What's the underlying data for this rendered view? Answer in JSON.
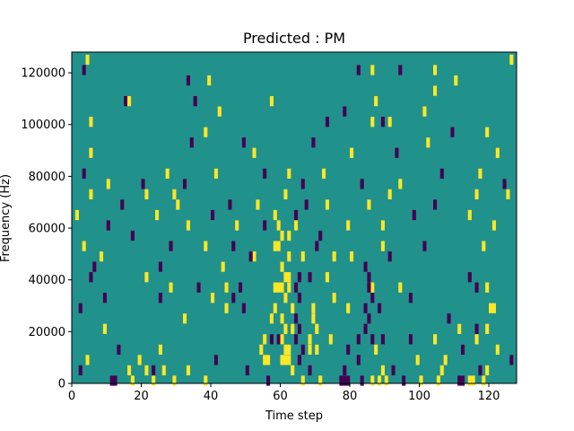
{
  "chart_data": {
    "type": "heatmap",
    "title": "Predicted : PM",
    "xlabel": "Time step",
    "ylabel": "Frequency (Hz)",
    "xlim": [
      0,
      128
    ],
    "ylim": [
      0,
      128000
    ],
    "xticks": [
      0,
      20,
      40,
      60,
      80,
      100,
      120
    ],
    "yticks": [
      0,
      20000,
      40000,
      60000,
      80000,
      100000,
      120000
    ],
    "ytick_labels": [
      "0",
      "20000",
      "40000",
      "60000",
      "80000",
      "100000",
      "120000"
    ],
    "grid": false,
    "legend": "none",
    "colormap": {
      "low": "#440154",
      "mid": "#21918c",
      "high": "#fde725"
    },
    "background_value": 0,
    "cells": [
      {
        "x": 4,
        "y": 126000,
        "v": 1
      },
      {
        "x": 126,
        "y": 126000,
        "v": 1
      },
      {
        "x": 3,
        "y": 122000,
        "v": -1
      },
      {
        "x": 33,
        "y": 118000,
        "v": -1
      },
      {
        "x": 39,
        "y": 118000,
        "v": 1
      },
      {
        "x": 82,
        "y": 122000,
        "v": -1
      },
      {
        "x": 86,
        "y": 122000,
        "v": 1
      },
      {
        "x": 94,
        "y": 122000,
        "v": -1
      },
      {
        "x": 104,
        "y": 122000,
        "v": 1
      },
      {
        "x": 110,
        "y": 118000,
        "v": 1
      },
      {
        "x": 15,
        "y": 110000,
        "v": -1
      },
      {
        "x": 16,
        "y": 110000,
        "v": 1
      },
      {
        "x": 35,
        "y": 110000,
        "v": -1
      },
      {
        "x": 42,
        "y": 106000,
        "v": 1
      },
      {
        "x": 57,
        "y": 110000,
        "v": 1
      },
      {
        "x": 5,
        "y": 102000,
        "v": 1
      },
      {
        "x": 73,
        "y": 102000,
        "v": -1
      },
      {
        "x": 87,
        "y": 110000,
        "v": 1
      },
      {
        "x": 78,
        "y": 106000,
        "v": -1
      },
      {
        "x": 101,
        "y": 106000,
        "v": 1
      },
      {
        "x": 104,
        "y": 114000,
        "v": 1
      },
      {
        "x": 86,
        "y": 102000,
        "v": 1
      },
      {
        "x": 89,
        "y": 102000,
        "v": -1
      },
      {
        "x": 91,
        "y": 102000,
        "v": 1
      },
      {
        "x": 109,
        "y": 98000,
        "v": -1
      },
      {
        "x": 119,
        "y": 98000,
        "v": 1
      },
      {
        "x": 5,
        "y": 90000,
        "v": 1
      },
      {
        "x": 34,
        "y": 94000,
        "v": -1
      },
      {
        "x": 38,
        "y": 98000,
        "v": 1
      },
      {
        "x": 49,
        "y": 94000,
        "v": -1
      },
      {
        "x": 52,
        "y": 90000,
        "v": 1
      },
      {
        "x": 69,
        "y": 94000,
        "v": -1
      },
      {
        "x": 80,
        "y": 90000,
        "v": 1
      },
      {
        "x": 93,
        "y": 90000,
        "v": -1
      },
      {
        "x": 102,
        "y": 94000,
        "v": 1
      },
      {
        "x": 122,
        "y": 90000,
        "v": 1
      },
      {
        "x": 3,
        "y": 82000,
        "v": -1
      },
      {
        "x": 10,
        "y": 78000,
        "v": 1
      },
      {
        "x": 20,
        "y": 78000,
        "v": -1
      },
      {
        "x": 27,
        "y": 82000,
        "v": 1
      },
      {
        "x": 32,
        "y": 78000,
        "v": -1
      },
      {
        "x": 41,
        "y": 82000,
        "v": 1
      },
      {
        "x": 55,
        "y": 82000,
        "v": -1
      },
      {
        "x": 62,
        "y": 82000,
        "v": 1
      },
      {
        "x": 66,
        "y": 78000,
        "v": -1
      },
      {
        "x": 72,
        "y": 82000,
        "v": 1
      },
      {
        "x": 83,
        "y": 78000,
        "v": -1
      },
      {
        "x": 94,
        "y": 78000,
        "v": 1
      },
      {
        "x": 106,
        "y": 82000,
        "v": -1
      },
      {
        "x": 117,
        "y": 82000,
        "v": 1
      },
      {
        "x": 124,
        "y": 78000,
        "v": -1
      },
      {
        "x": 5,
        "y": 74000,
        "v": 1
      },
      {
        "x": 14,
        "y": 70000,
        "v": -1
      },
      {
        "x": 21,
        "y": 74000,
        "v": 1
      },
      {
        "x": 29,
        "y": 74000,
        "v": 1
      },
      {
        "x": 30,
        "y": 70000,
        "v": 1
      },
      {
        "x": 45,
        "y": 70000,
        "v": -1
      },
      {
        "x": 53,
        "y": 70000,
        "v": 1
      },
      {
        "x": 61,
        "y": 74000,
        "v": 1
      },
      {
        "x": 67,
        "y": 70000,
        "v": -1
      },
      {
        "x": 73,
        "y": 70000,
        "v": 1
      },
      {
        "x": 85,
        "y": 70000,
        "v": 1
      },
      {
        "x": 91,
        "y": 74000,
        "v": 1
      },
      {
        "x": 104,
        "y": 70000,
        "v": -1
      },
      {
        "x": 116,
        "y": 74000,
        "v": 1
      },
      {
        "x": 125,
        "y": 74000,
        "v": 1
      },
      {
        "x": 1,
        "y": 66000,
        "v": 1
      },
      {
        "x": 10,
        "y": 62000,
        "v": -1
      },
      {
        "x": 24,
        "y": 66000,
        "v": 1
      },
      {
        "x": 33,
        "y": 62000,
        "v": 1
      },
      {
        "x": 40,
        "y": 66000,
        "v": -1
      },
      {
        "x": 47,
        "y": 62000,
        "v": 1
      },
      {
        "x": 55,
        "y": 62000,
        "v": -1
      },
      {
        "x": 60,
        "y": 58000,
        "v": 1
      },
      {
        "x": 64,
        "y": 62000,
        "v": 1
      },
      {
        "x": 71,
        "y": 58000,
        "v": -1
      },
      {
        "x": 79,
        "y": 62000,
        "v": 1
      },
      {
        "x": 89,
        "y": 62000,
        "v": 1
      },
      {
        "x": 98,
        "y": 66000,
        "v": -1
      },
      {
        "x": 114,
        "y": 66000,
        "v": 1
      },
      {
        "x": 121,
        "y": 62000,
        "v": 1
      },
      {
        "x": 3,
        "y": 54000,
        "v": 1
      },
      {
        "x": 17,
        "y": 58000,
        "v": -1
      },
      {
        "x": 28,
        "y": 54000,
        "v": -1
      },
      {
        "x": 38,
        "y": 54000,
        "v": 1
      },
      {
        "x": 46,
        "y": 54000,
        "v": -1
      },
      {
        "x": 52,
        "y": 50000,
        "v": 1
      },
      {
        "x": 59,
        "y": 54000,
        "v": 1
      },
      {
        "x": 70,
        "y": 54000,
        "v": -1
      },
      {
        "x": 80,
        "y": 50000,
        "v": 1
      },
      {
        "x": 89,
        "y": 54000,
        "v": 1
      },
      {
        "x": 101,
        "y": 54000,
        "v": -1
      },
      {
        "x": 118,
        "y": 54000,
        "v": 1
      },
      {
        "x": 8,
        "y": 50000,
        "v": 1
      },
      {
        "x": 6,
        "y": 46000,
        "v": -1
      },
      {
        "x": 25,
        "y": 46000,
        "v": -1
      },
      {
        "x": 43,
        "y": 46000,
        "v": 1
      },
      {
        "x": 51,
        "y": 50000,
        "v": -1
      },
      {
        "x": 66,
        "y": 50000,
        "v": 1
      },
      {
        "x": 75,
        "y": 50000,
        "v": 1
      },
      {
        "x": 91,
        "y": 50000,
        "v": -1
      },
      {
        "x": 114,
        "y": 42000,
        "v": -1
      },
      {
        "x": 5,
        "y": 42000,
        "v": -1
      },
      {
        "x": 21,
        "y": 42000,
        "v": 1
      },
      {
        "x": 28,
        "y": 38000,
        "v": 1
      },
      {
        "x": 36,
        "y": 38000,
        "v": -1
      },
      {
        "x": 44,
        "y": 38000,
        "v": 1
      },
      {
        "x": 48,
        "y": 38000,
        "v": -1
      },
      {
        "x": 68,
        "y": 42000,
        "v": -1
      },
      {
        "x": 73,
        "y": 42000,
        "v": 1
      },
      {
        "x": 86,
        "y": 38000,
        "v": 1
      },
      {
        "x": 94,
        "y": 38000,
        "v": 1
      },
      {
        "x": 116,
        "y": 38000,
        "v": -1
      },
      {
        "x": 119,
        "y": 38000,
        "v": 1
      },
      {
        "x": 9,
        "y": 34000,
        "v": -1
      },
      {
        "x": 25,
        "y": 34000,
        "v": -1
      },
      {
        "x": 40,
        "y": 34000,
        "v": 1
      },
      {
        "x": 46,
        "y": 34000,
        "v": -1
      },
      {
        "x": 75,
        "y": 34000,
        "v": 1
      },
      {
        "x": 97,
        "y": 34000,
        "v": -1
      },
      {
        "x": 120,
        "y": 30000,
        "v": 1
      },
      {
        "x": 121,
        "y": 30000,
        "v": 1
      },
      {
        "x": 2,
        "y": 30000,
        "v": -1
      },
      {
        "x": 32,
        "y": 26000,
        "v": 1
      },
      {
        "x": 44,
        "y": 30000,
        "v": 1
      },
      {
        "x": 49,
        "y": 30000,
        "v": -1
      },
      {
        "x": 79,
        "y": 30000,
        "v": 1
      },
      {
        "x": 88,
        "y": 30000,
        "v": -1
      },
      {
        "x": 108,
        "y": 26000,
        "v": -1
      },
      {
        "x": 111,
        "y": 22000,
        "v": 1
      },
      {
        "x": 116,
        "y": 22000,
        "v": -1
      },
      {
        "x": 119,
        "y": 22000,
        "v": 1
      },
      {
        "x": 9,
        "y": 22000,
        "v": 1
      },
      {
        "x": 54,
        "y": 14000,
        "v": 1
      },
      {
        "x": 55,
        "y": 18000,
        "v": 1
      },
      {
        "x": 57,
        "y": 18000,
        "v": -1
      },
      {
        "x": 59,
        "y": 18000,
        "v": -1
      },
      {
        "x": 68,
        "y": 14000,
        "v": 1
      },
      {
        "x": 74,
        "y": 18000,
        "v": 1
      },
      {
        "x": 79,
        "y": 14000,
        "v": -1
      },
      {
        "x": 82,
        "y": 18000,
        "v": -1
      },
      {
        "x": 87,
        "y": 14000,
        "v": 1
      },
      {
        "x": 89,
        "y": 18000,
        "v": -1
      },
      {
        "x": 97,
        "y": 18000,
        "v": -1
      },
      {
        "x": 104,
        "y": 18000,
        "v": 1
      },
      {
        "x": 112,
        "y": 14000,
        "v": -1
      },
      {
        "x": 116,
        "y": 18000,
        "v": 1
      },
      {
        "x": 13,
        "y": 14000,
        "v": -1
      },
      {
        "x": 25,
        "y": 14000,
        "v": 1
      },
      {
        "x": 4,
        "y": 10000,
        "v": 1
      },
      {
        "x": 19,
        "y": 10000,
        "v": 1
      },
      {
        "x": 41,
        "y": 10000,
        "v": -1
      },
      {
        "x": 82,
        "y": 10000,
        "v": -1
      },
      {
        "x": 99,
        "y": 10000,
        "v": 1
      },
      {
        "x": 107,
        "y": 10000,
        "v": 1
      },
      {
        "x": 122,
        "y": 14000,
        "v": 1
      },
      {
        "x": 126,
        "y": 10000,
        "v": -1
      },
      {
        "x": 2,
        "y": 6000,
        "v": -1
      },
      {
        "x": 16,
        "y": 6000,
        "v": 1
      },
      {
        "x": 21,
        "y": 6000,
        "v": 1
      },
      {
        "x": 23,
        "y": 6000,
        "v": -1
      },
      {
        "x": 26,
        "y": 6000,
        "v": 1
      },
      {
        "x": 33,
        "y": 6000,
        "v": 1
      },
      {
        "x": 50,
        "y": 6000,
        "v": -1
      },
      {
        "x": 68,
        "y": 6000,
        "v": -1
      },
      {
        "x": 78,
        "y": 6000,
        "v": -1
      },
      {
        "x": 89,
        "y": 6000,
        "v": 1
      },
      {
        "x": 92,
        "y": 6000,
        "v": -1
      },
      {
        "x": 106,
        "y": 6000,
        "v": 1
      },
      {
        "x": 117,
        "y": 6000,
        "v": -1
      },
      {
        "x": 119,
        "y": 6000,
        "v": 1
      },
      {
        "x": 11,
        "y": 2000,
        "v": -1
      },
      {
        "x": 12,
        "y": 2000,
        "v": -1
      },
      {
        "x": 17,
        "y": 2000,
        "v": 1
      },
      {
        "x": 23,
        "y": 2000,
        "v": 1
      },
      {
        "x": 29,
        "y": 2000,
        "v": 1
      },
      {
        "x": 38,
        "y": 2000,
        "v": 1
      },
      {
        "x": 56,
        "y": 2000,
        "v": -1
      },
      {
        "x": 66,
        "y": 2000,
        "v": 1
      },
      {
        "x": 71,
        "y": 2000,
        "v": 1
      },
      {
        "x": 77,
        "y": 2000,
        "v": -1
      },
      {
        "x": 78,
        "y": 2000,
        "v": -1
      },
      {
        "x": 79,
        "y": 2000,
        "v": -1
      },
      {
        "x": 83,
        "y": 2000,
        "v": -1
      },
      {
        "x": 86,
        "y": 2000,
        "v": 1
      },
      {
        "x": 88,
        "y": 2000,
        "v": 1
      },
      {
        "x": 90,
        "y": 2000,
        "v": 1
      },
      {
        "x": 95,
        "y": 2000,
        "v": -1
      },
      {
        "x": 100,
        "y": 2000,
        "v": 1
      },
      {
        "x": 105,
        "y": 2000,
        "v": 1
      },
      {
        "x": 111,
        "y": 2000,
        "v": -1
      },
      {
        "x": 112,
        "y": 2000,
        "v": -1
      },
      {
        "x": 114,
        "y": 2000,
        "v": 1
      },
      {
        "x": 115,
        "y": 2000,
        "v": 1
      },
      {
        "x": 118,
        "y": 2000,
        "v": 1
      },
      {
        "x": 60,
        "y": 46000,
        "v": 1
      },
      {
        "x": 61,
        "y": 42000,
        "v": 1
      },
      {
        "x": 62,
        "y": 42000,
        "v": 1
      },
      {
        "x": 60,
        "y": 38000,
        "v": 1
      },
      {
        "x": 61,
        "y": 34000,
        "v": 1
      },
      {
        "x": 62,
        "y": 38000,
        "v": 1
      },
      {
        "x": 63,
        "y": 30000,
        "v": 1
      },
      {
        "x": 60,
        "y": 26000,
        "v": 1
      },
      {
        "x": 61,
        "y": 22000,
        "v": 1
      },
      {
        "x": 63,
        "y": 22000,
        "v": 1
      },
      {
        "x": 60,
        "y": 18000,
        "v": 1
      },
      {
        "x": 61,
        "y": 14000,
        "v": 1
      },
      {
        "x": 62,
        "y": 14000,
        "v": 1
      },
      {
        "x": 60,
        "y": 10000,
        "v": 1
      },
      {
        "x": 61,
        "y": 10000,
        "v": 1
      },
      {
        "x": 62,
        "y": 10000,
        "v": 1
      },
      {
        "x": 63,
        "y": 6000,
        "v": 1
      },
      {
        "x": 58,
        "y": 38000,
        "v": 1
      },
      {
        "x": 59,
        "y": 38000,
        "v": 1
      },
      {
        "x": 58,
        "y": 30000,
        "v": 1
      },
      {
        "x": 57,
        "y": 26000,
        "v": 1
      },
      {
        "x": 56,
        "y": 10000,
        "v": 1
      },
      {
        "x": 55,
        "y": 10000,
        "v": 1
      },
      {
        "x": 64,
        "y": 38000,
        "v": -1
      },
      {
        "x": 65,
        "y": 42000,
        "v": -1
      },
      {
        "x": 65,
        "y": 34000,
        "v": -1
      },
      {
        "x": 64,
        "y": 26000,
        "v": -1
      },
      {
        "x": 65,
        "y": 22000,
        "v": -1
      },
      {
        "x": 64,
        "y": 18000,
        "v": -1
      },
      {
        "x": 66,
        "y": 14000,
        "v": -1
      },
      {
        "x": 65,
        "y": 10000,
        "v": -1
      },
      {
        "x": 69,
        "y": 30000,
        "v": 1
      },
      {
        "x": 69,
        "y": 26000,
        "v": 1
      },
      {
        "x": 70,
        "y": 22000,
        "v": 1
      },
      {
        "x": 70,
        "y": 14000,
        "v": 1
      },
      {
        "x": 68,
        "y": 18000,
        "v": 1
      },
      {
        "x": 84,
        "y": 46000,
        "v": -1
      },
      {
        "x": 85,
        "y": 42000,
        "v": -1
      },
      {
        "x": 85,
        "y": 38000,
        "v": -1
      },
      {
        "x": 86,
        "y": 34000,
        "v": -1
      },
      {
        "x": 84,
        "y": 30000,
        "v": -1
      },
      {
        "x": 85,
        "y": 26000,
        "v": -1
      },
      {
        "x": 84,
        "y": 22000,
        "v": -1
      },
      {
        "x": 86,
        "y": 18000,
        "v": -1
      },
      {
        "x": 58,
        "y": 66000,
        "v": 1
      },
      {
        "x": 59,
        "y": 62000,
        "v": 1
      },
      {
        "x": 62,
        "y": 58000,
        "v": 1
      },
      {
        "x": 64,
        "y": 66000,
        "v": -1
      },
      {
        "x": 58,
        "y": 54000,
        "v": 1
      },
      {
        "x": 62,
        "y": 50000,
        "v": 1
      }
    ]
  }
}
